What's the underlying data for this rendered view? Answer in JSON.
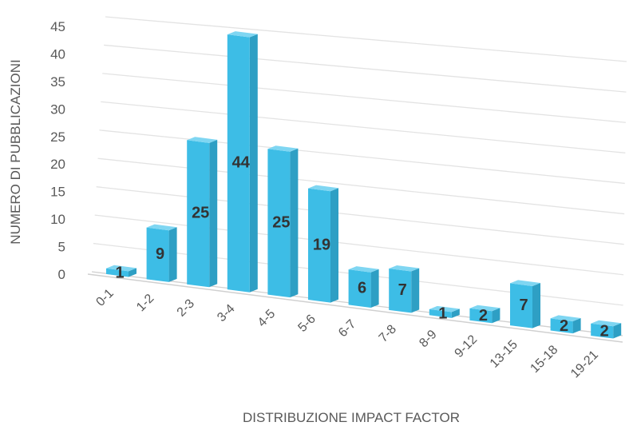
{
  "chart_data": {
    "type": "bar",
    "style": "3d-column",
    "categories": [
      "0-1",
      "1-2",
      "2-3",
      "3-4",
      "4-5",
      "5-6",
      "6-7",
      "7-8",
      "8-9",
      "9-12",
      "13-15",
      "15-18",
      "19-21"
    ],
    "values": [
      1,
      9,
      25,
      44,
      25,
      19,
      6,
      7,
      1,
      2,
      7,
      2,
      2
    ],
    "xlabel": "DISTRIBUZIONE IMPACT FACTOR",
    "ylabel": "NUMERO DI PUBBLICAZIONI",
    "ylim": [
      0,
      45
    ],
    "yticks": [
      0,
      5,
      10,
      15,
      20,
      25,
      30,
      35,
      40,
      45
    ],
    "grid": true,
    "legend": "none",
    "data_labels": true,
    "colors": {
      "bar_front": "#3dbde6",
      "bar_side": "#2e9fc4",
      "bar_top": "#7fd6f2",
      "grid": "#e3e3e3",
      "text": "#595959",
      "label": "#333333"
    }
  }
}
